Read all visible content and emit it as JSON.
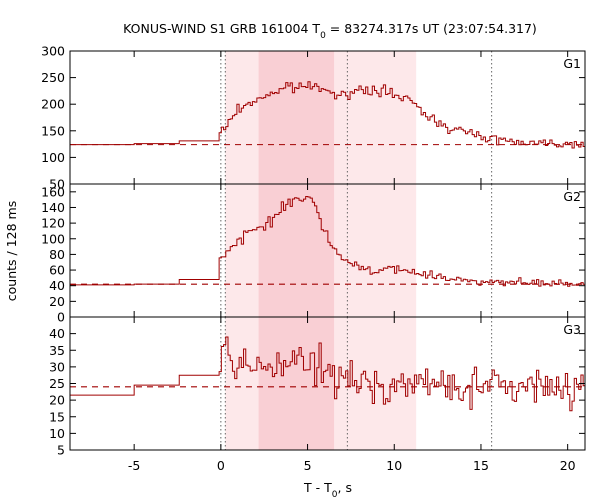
{
  "title": {
    "pre": "KONUS-WIND S1 GRB 161004 T",
    "sub": "0",
    "post": " = 83274.317s UT (23:07:54.317)"
  },
  "colors": {
    "line": "#a00000",
    "band_light": "#fde8ea",
    "band_dark": "#f9cfd4",
    "marker": "#666666",
    "frame": "#000000"
  },
  "chart_data": {
    "type": "line",
    "xlabel": {
      "pre": "T - T",
      "sub": "0",
      "post": ", s"
    },
    "ylabel": "counts / 128 ms",
    "xlim": [
      -8.7,
      21
    ],
    "x_ticks": [
      -5,
      0,
      5,
      10,
      15,
      20
    ],
    "shaded_intervals": [
      {
        "from": 0.256,
        "to": 11.264,
        "shade": "light"
      },
      {
        "from": 2.176,
        "to": 6.528,
        "shade": "dark"
      }
    ],
    "vertical_markers": [
      0.0,
      0.256,
      7.296,
      15.616
    ],
    "panels": [
      {
        "name": "G1",
        "ylim": [
          50,
          300
        ],
        "y_ticks": [
          50,
          100,
          150,
          200,
          250,
          300
        ],
        "background": 124,
        "bins_before_trigger": [
          {
            "from": -8.7,
            "to": -5.0,
            "value": 124
          },
          {
            "from": -5.0,
            "to": -2.4,
            "value": 126
          },
          {
            "from": -2.4,
            "to": -0.1,
            "value": 131
          }
        ],
        "profile": {
          "time": [
            -0.1,
            0.3,
            1.0,
            2.0,
            3.0,
            4.0,
            5.0,
            6.0,
            6.6,
            7.5,
            8.5,
            9.5,
            10.5,
            11.3,
            12.0,
            13.0,
            14.0,
            15.0,
            16.0,
            17.0,
            18.0,
            19.0,
            20.0,
            21.0
          ],
          "counts": [
            140,
            160,
            190,
            208,
            222,
            232,
            234,
            231,
            222,
            218,
            227,
            224,
            212,
            196,
            176,
            160,
            148,
            140,
            134,
            130,
            128,
            127,
            126,
            125
          ]
        }
      },
      {
        "name": "G2",
        "ylim": [
          0,
          170
        ],
        "y_ticks": [
          0,
          20,
          40,
          60,
          80,
          100,
          120,
          140,
          160
        ],
        "background": 42,
        "bins_before_trigger": [
          {
            "from": -8.7,
            "to": -5.0,
            "value": 41
          },
          {
            "from": -5.0,
            "to": -2.4,
            "value": 42
          },
          {
            "from": -2.4,
            "to": -0.1,
            "value": 48
          }
        ],
        "profile": {
          "time": [
            -0.1,
            0.3,
            1.0,
            2.0,
            3.0,
            3.7,
            4.2,
            4.8,
            5.3,
            5.8,
            6.3,
            7.0,
            8.0,
            9.0,
            10.0,
            11.0,
            12.0,
            13.0,
            14.0,
            15.0,
            16.0,
            17.0,
            18.0,
            19.0,
            20.0,
            21.0
          ],
          "counts": [
            78,
            82,
            96,
            112,
            126,
            140,
            150,
            156,
            148,
            120,
            92,
            74,
            64,
            60,
            60,
            58,
            54,
            50,
            48,
            46,
            44,
            44,
            43,
            43,
            42,
            42
          ]
        }
      },
      {
        "name": "G3",
        "ylim": [
          5,
          45
        ],
        "y_ticks": [
          5,
          10,
          15,
          20,
          25,
          30,
          35,
          40
        ],
        "background": 24,
        "bins_before_trigger": [
          {
            "from": -8.7,
            "to": -5.0,
            "value": 21.5
          },
          {
            "from": -5.0,
            "to": -2.4,
            "value": 24.5
          },
          {
            "from": -2.4,
            "to": -0.1,
            "value": 27.5
          }
        ],
        "profile": {
          "time": [
            -0.1,
            0.3,
            1.0,
            2.0,
            3.0,
            4.0,
            5.0,
            6.0,
            7.0,
            8.0,
            9.0,
            10.0,
            11.0,
            12.0,
            14.0,
            16.0,
            18.0,
            20.0,
            21.0
          ],
          "counts": [
            30,
            31,
            30,
            30,
            31,
            31,
            31,
            29,
            26,
            25,
            25,
            25,
            25,
            24.5,
            24,
            24,
            24,
            24,
            24
          ]
        }
      }
    ]
  }
}
